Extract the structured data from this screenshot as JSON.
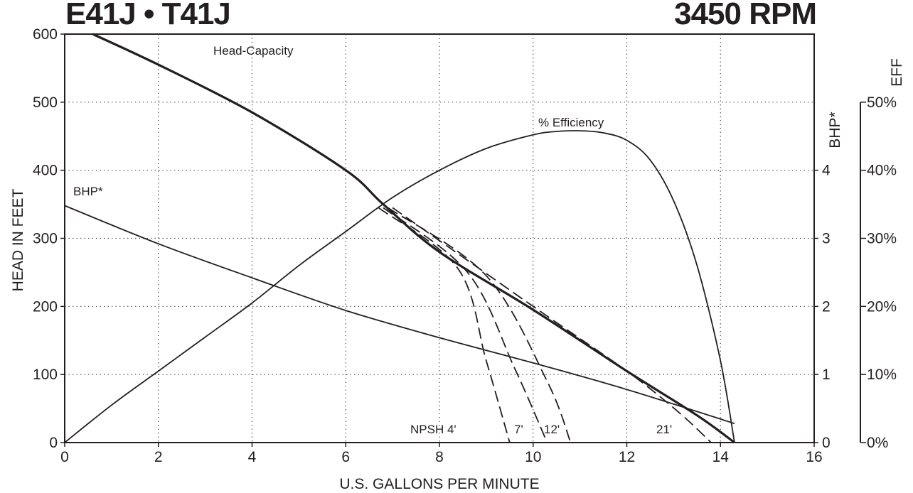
{
  "header": {
    "model": "E41J • T41J",
    "speed": "3450 RPM"
  },
  "chart_data": {
    "type": "line",
    "xlabel": "U.S. GALLONS PER MINUTE",
    "ylabel_left": "HEAD IN FEET",
    "ylabel_right_bhp": "BHP*",
    "ylabel_right_eff": "EFF",
    "xlim": [
      0,
      16
    ],
    "ylim_head": [
      0,
      600
    ],
    "ylim_bhp": [
      0,
      6
    ],
    "ylim_eff": [
      0,
      60
    ],
    "x_ticks": [
      "0",
      "2",
      "4",
      "6",
      "8",
      "10",
      "12",
      "14",
      "16"
    ],
    "head_ticks": [
      "0",
      "100",
      "200",
      "300",
      "400",
      "500",
      "600"
    ],
    "bhp_ticks": [
      "0",
      "1",
      "2",
      "3",
      "4"
    ],
    "eff_ticks": [
      "0%",
      "10%",
      "20%",
      "30%",
      "40%",
      "50%"
    ],
    "grid": true,
    "series": [
      {
        "name": "Head-Capacity",
        "axis": "head",
        "style": "solid-bold",
        "x": [
          0.6,
          2,
          4,
          6,
          6.8,
          8,
          10,
          12,
          13.5,
          14.3
        ],
        "y": [
          600,
          555,
          485,
          400,
          350,
          280,
          195,
          105,
          40,
          0
        ]
      },
      {
        "name": "% Efficiency",
        "axis": "eff",
        "style": "solid",
        "x": [
          0,
          1,
          2,
          3,
          4,
          5,
          6,
          7,
          8,
          9,
          10,
          10.5,
          11,
          11.5,
          12,
          12.5,
          13,
          13.5,
          14,
          14.3
        ],
        "y": [
          0,
          5.5,
          10.5,
          15.5,
          20.5,
          26,
          31,
          36,
          40,
          43.2,
          45.2,
          45.7,
          45.8,
          45.5,
          44.4,
          41.5,
          35.5,
          26,
          12,
          0
        ]
      },
      {
        "name": "BHP*",
        "axis": "bhp",
        "style": "solid",
        "x": [
          0,
          2,
          4,
          6,
          8,
          10,
          12,
          14.3
        ],
        "y": [
          3.48,
          2.92,
          2.42,
          1.94,
          1.54,
          1.17,
          0.78,
          0.28
        ]
      },
      {
        "name": "NPSH 4'",
        "axis": "head",
        "style": "dashed",
        "x": [
          6.7,
          8.4,
          9.0,
          9.5
        ],
        "y": [
          345,
          255,
          120,
          0
        ]
      },
      {
        "name": "7'",
        "axis": "head",
        "style": "dashed",
        "x": [
          6.8,
          8.6,
          9.6,
          10.3
        ],
        "y": [
          345,
          250,
          110,
          0
        ]
      },
      {
        "name": "12'",
        "axis": "head",
        "style": "dashed",
        "x": [
          6.9,
          9.0,
          10.3,
          10.8
        ],
        "y": [
          345,
          245,
          90,
          0
        ]
      },
      {
        "name": "21'",
        "axis": "head",
        "style": "dashed",
        "x": [
          7.0,
          10.0,
          12.0,
          13.1,
          13.8
        ],
        "y": [
          345,
          200,
          105,
          45,
          0
        ]
      }
    ],
    "annotations": [
      "Head-Capacity",
      "% Efficiency",
      "BHP*",
      "NPSH 4'",
      "7'",
      "12'",
      "21'"
    ]
  }
}
